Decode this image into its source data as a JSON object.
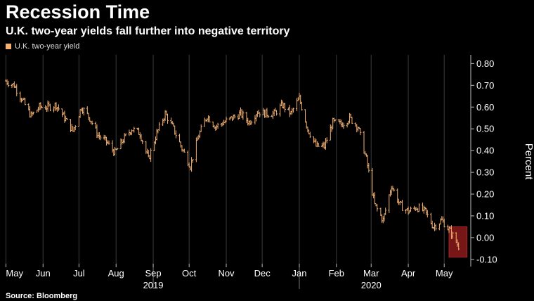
{
  "title": "Recession Time",
  "subtitle": "U.K. two-year yields fall further into negative territory",
  "legend": {
    "label": "U.K. two-year yield",
    "color": "#f2b072"
  },
  "source": "Source: Bloomberg",
  "chart_data": {
    "type": "line",
    "style": "ohlc-ticks",
    "series": [
      {
        "name": "U.K. two-year yield",
        "color": "#f2b072",
        "x": [
          "2019-05-01",
          "2019-05-08",
          "2019-05-15",
          "2019-05-22",
          "2019-05-29",
          "2019-06-05",
          "2019-06-12",
          "2019-06-19",
          "2019-06-26",
          "2019-07-03",
          "2019-07-10",
          "2019-07-17",
          "2019-07-24",
          "2019-07-31",
          "2019-08-07",
          "2019-08-14",
          "2019-08-21",
          "2019-08-28",
          "2019-09-04",
          "2019-09-11",
          "2019-09-18",
          "2019-09-25",
          "2019-10-02",
          "2019-10-09",
          "2019-10-16",
          "2019-10-23",
          "2019-10-30",
          "2019-11-06",
          "2019-11-13",
          "2019-11-20",
          "2019-11-27",
          "2019-12-04",
          "2019-12-11",
          "2019-12-18",
          "2019-12-25",
          "2020-01-01",
          "2020-01-08",
          "2020-01-15",
          "2020-01-22",
          "2020-01-29",
          "2020-02-05",
          "2020-02-12",
          "2020-02-19",
          "2020-02-26",
          "2020-03-04",
          "2020-03-11",
          "2020-03-18",
          "2020-03-25",
          "2020-04-01",
          "2020-04-08",
          "2020-04-15",
          "2020-04-22",
          "2020-04-29",
          "2020-05-06",
          "2020-05-13"
        ],
        "values": [
          0.72,
          0.7,
          0.63,
          0.56,
          0.6,
          0.6,
          0.61,
          0.55,
          0.49,
          0.6,
          0.55,
          0.47,
          0.44,
          0.39,
          0.45,
          0.5,
          0.48,
          0.36,
          0.48,
          0.57,
          0.5,
          0.41,
          0.33,
          0.47,
          0.56,
          0.51,
          0.53,
          0.55,
          0.57,
          0.53,
          0.58,
          0.57,
          0.57,
          0.61,
          0.57,
          0.64,
          0.5,
          0.42,
          0.42,
          0.53,
          0.52,
          0.55,
          0.51,
          0.36,
          0.15,
          0.08,
          0.24,
          0.15,
          0.12,
          0.14,
          0.12,
          0.05,
          0.08,
          0.03,
          -0.04
        ]
      }
    ],
    "x_tick_labels": [
      "May",
      "Jun",
      "Jul",
      "Aug",
      "Sep",
      "Oct",
      "Nov",
      "Dec",
      "Jan",
      "Feb",
      "Mar",
      "Apr",
      "May"
    ],
    "x_tick_dates": [
      "2019-05-01",
      "2019-06-01",
      "2019-07-01",
      "2019-08-01",
      "2019-09-01",
      "2019-10-01",
      "2019-11-01",
      "2019-12-01",
      "2020-01-01",
      "2020-02-01",
      "2020-03-01",
      "2020-04-01",
      "2020-05-01"
    ],
    "year_labels": [
      {
        "label": "2019",
        "date": "2019-09-01"
      },
      {
        "label": "2020",
        "date": "2020-03-01"
      }
    ],
    "y_ticks": [
      0.8,
      0.7,
      0.6,
      0.5,
      0.4,
      0.3,
      0.2,
      0.1,
      0.0,
      -0.1
    ],
    "y_tick_labels": [
      "0.80",
      "0.70",
      "0.60",
      "0.50",
      "0.40",
      "0.30",
      "0.20",
      "0.10",
      "0.00",
      "-0.10"
    ],
    "ylabel": "Percent",
    "ylim": [
      -0.12,
      0.84
    ],
    "xlim": [
      "2019-04-29",
      "2020-05-22"
    ],
    "y_axis_side": "right",
    "grid": "vertical",
    "highlight": {
      "from": "2020-05-05",
      "to": "2020-05-20",
      "ymin": -0.09,
      "ymax": 0.05,
      "color": "#8b1a1a"
    }
  }
}
